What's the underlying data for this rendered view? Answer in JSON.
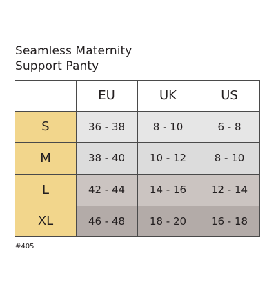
{
  "title": {
    "line1": "Seamless Maternity",
    "line2": "Support Panty"
  },
  "size_chart": {
    "columns": [
      "EU",
      "UK",
      "US"
    ],
    "rows": [
      {
        "size": "S",
        "eu": "36 - 38",
        "uk": "8 - 10",
        "us": "6 - 8"
      },
      {
        "size": "M",
        "eu": "38 - 40",
        "uk": "10 - 12",
        "us": "8 - 10"
      },
      {
        "size": "L",
        "eu": "42 - 44",
        "uk": "14 - 16",
        "us": "12 - 14"
      },
      {
        "size": "XL",
        "eu": "46 - 48",
        "uk": "18 - 20",
        "us": "16 - 18"
      }
    ]
  },
  "footnote": "#405",
  "colors": {
    "size_column": "#f2d68c",
    "row_s": "#e6e6e6",
    "row_m": "#dcdcdc",
    "row_l": "#cbc4c1",
    "row_xl": "#b3aba8",
    "grid_lines": "#4a4a4a"
  }
}
